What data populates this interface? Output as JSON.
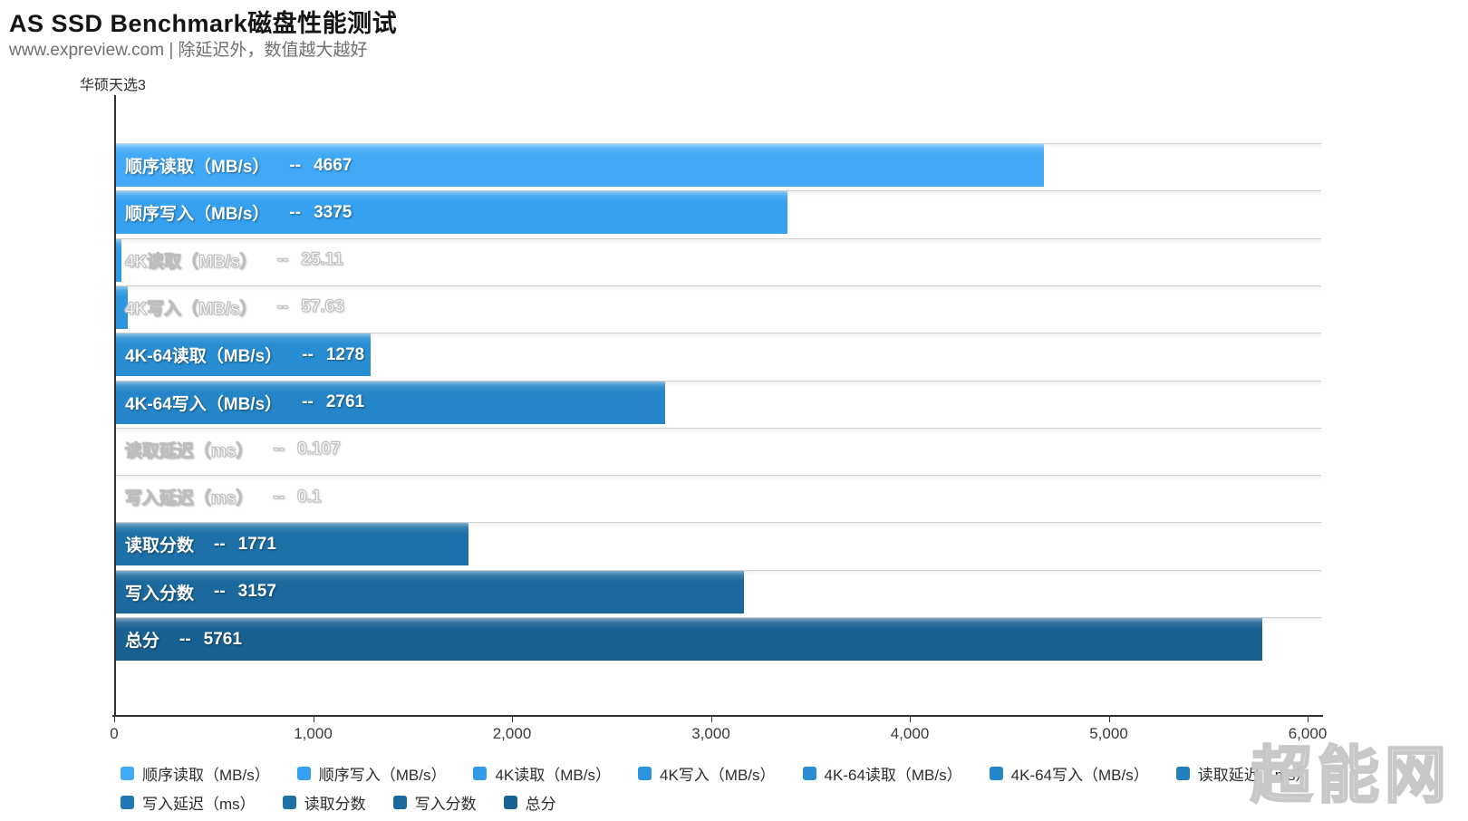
{
  "header": {
    "title": "AS SSD Benchmark磁盘性能测试",
    "subtitle": "www.expreview.com | 除延迟外，数值越大越好"
  },
  "chart": {
    "category_label": "华硕天选3",
    "value_separator": "--",
    "x_max": 6000,
    "x_ticks": [
      {
        "label": "0",
        "value": 0
      },
      {
        "label": "1,000",
        "value": 1000
      },
      {
        "label": "2,000",
        "value": 2000
      },
      {
        "label": "3,000",
        "value": 3000
      },
      {
        "label": "4,000",
        "value": 4000
      },
      {
        "label": "5,000",
        "value": 5000
      },
      {
        "label": "6,000",
        "value": 6000
      }
    ],
    "bars": [
      {
        "label": "顺序读取（MB/s）",
        "value": 4667,
        "value_display": "4667",
        "color": "#41a9f7"
      },
      {
        "label": "顺序写入（MB/s）",
        "value": 3375,
        "value_display": "3375",
        "color": "#35a1f0"
      },
      {
        "label": "4K读取（MB/s）",
        "value": 25.11,
        "value_display": "25.11",
        "color": "#309be7"
      },
      {
        "label": "4K写入（MB/s）",
        "value": 57.63,
        "value_display": "57.63",
        "color": "#2c95de"
      },
      {
        "label": "4K-64读取（MB/s）",
        "value": 1278,
        "value_display": "1278",
        "color": "#288dd3"
      },
      {
        "label": "4K-64写入（MB/s）",
        "value": 2761,
        "value_display": "2761",
        "color": "#2486c9"
      },
      {
        "label": "读取延迟（ms）",
        "value": 0.107,
        "value_display": "0.107",
        "color": "#217fbe"
      },
      {
        "label": "写入延迟（ms）",
        "value": 0.1,
        "value_display": "0.1",
        "color": "#1f78b3"
      },
      {
        "label": "读取分数",
        "value": 1771,
        "value_display": "1771",
        "color": "#1d70a8"
      },
      {
        "label": "写入分数",
        "value": 3157,
        "value_display": "3157",
        "color": "#1b699e"
      },
      {
        "label": "总分",
        "value": 5761,
        "value_display": "5761",
        "color": "#196193"
      }
    ]
  },
  "legend": {
    "rows": [
      [
        {
          "label": "顺序读取（MB/s）",
          "color": "#41a9f7"
        },
        {
          "label": "顺序写入（MB/s）",
          "color": "#35a1f0"
        },
        {
          "label": "4K读取（MB/s）",
          "color": "#309be7"
        },
        {
          "label": "4K写入（MB/s）",
          "color": "#2c95de"
        },
        {
          "label": "4K-64读取（MB/s）",
          "color": "#288dd3"
        },
        {
          "label": "4K-64写入（MB/s）",
          "color": "#2486c9"
        },
        {
          "label": "读取延迟（ms）",
          "color": "#217fbe"
        }
      ],
      [
        {
          "label": "写入延迟（ms）",
          "color": "#1f78b3"
        },
        {
          "label": "读取分数",
          "color": "#1d70a8"
        },
        {
          "label": "写入分数",
          "color": "#1b699e"
        },
        {
          "label": "总分",
          "color": "#196193"
        }
      ]
    ]
  },
  "watermark": "超能网",
  "chart_data": {
    "type": "bar",
    "orientation": "horizontal",
    "title": "AS SSD Benchmark磁盘性能测试",
    "subtitle": "www.expreview.com | 除延迟外，数值越大越好",
    "group_label": "华硕天选3",
    "categories": [
      "顺序读取（MB/s）",
      "顺序写入（MB/s）",
      "4K读取（MB/s）",
      "4K写入（MB/s）",
      "4K-64读取（MB/s）",
      "4K-64写入（MB/s）",
      "读取延迟（ms）",
      "写入延迟（ms）",
      "读取分数",
      "写入分数",
      "总分"
    ],
    "values": [
      4667,
      3375,
      25.11,
      57.63,
      1278,
      2761,
      0.107,
      0.1,
      1771,
      3157,
      5761
    ],
    "value_labels": [
      "4667",
      "3375",
      "25.11",
      "57.63",
      "1278",
      "2761",
      "0.107",
      "0.1",
      "1771",
      "3157",
      "5761"
    ],
    "xlim": [
      0,
      6000
    ],
    "x_tick_labels": [
      "0",
      "1,000",
      "2,000",
      "3,000",
      "4,000",
      "5,000",
      "6,000"
    ],
    "grid": false,
    "legend_position": "bottom",
    "bar_colors_light_to_dark": [
      "#41a9f7",
      "#35a1f0",
      "#309be7",
      "#2c95de",
      "#288dd3",
      "#2486c9",
      "#217fbe",
      "#1f78b3",
      "#1d70a8",
      "#1b699e",
      "#196193"
    ]
  }
}
